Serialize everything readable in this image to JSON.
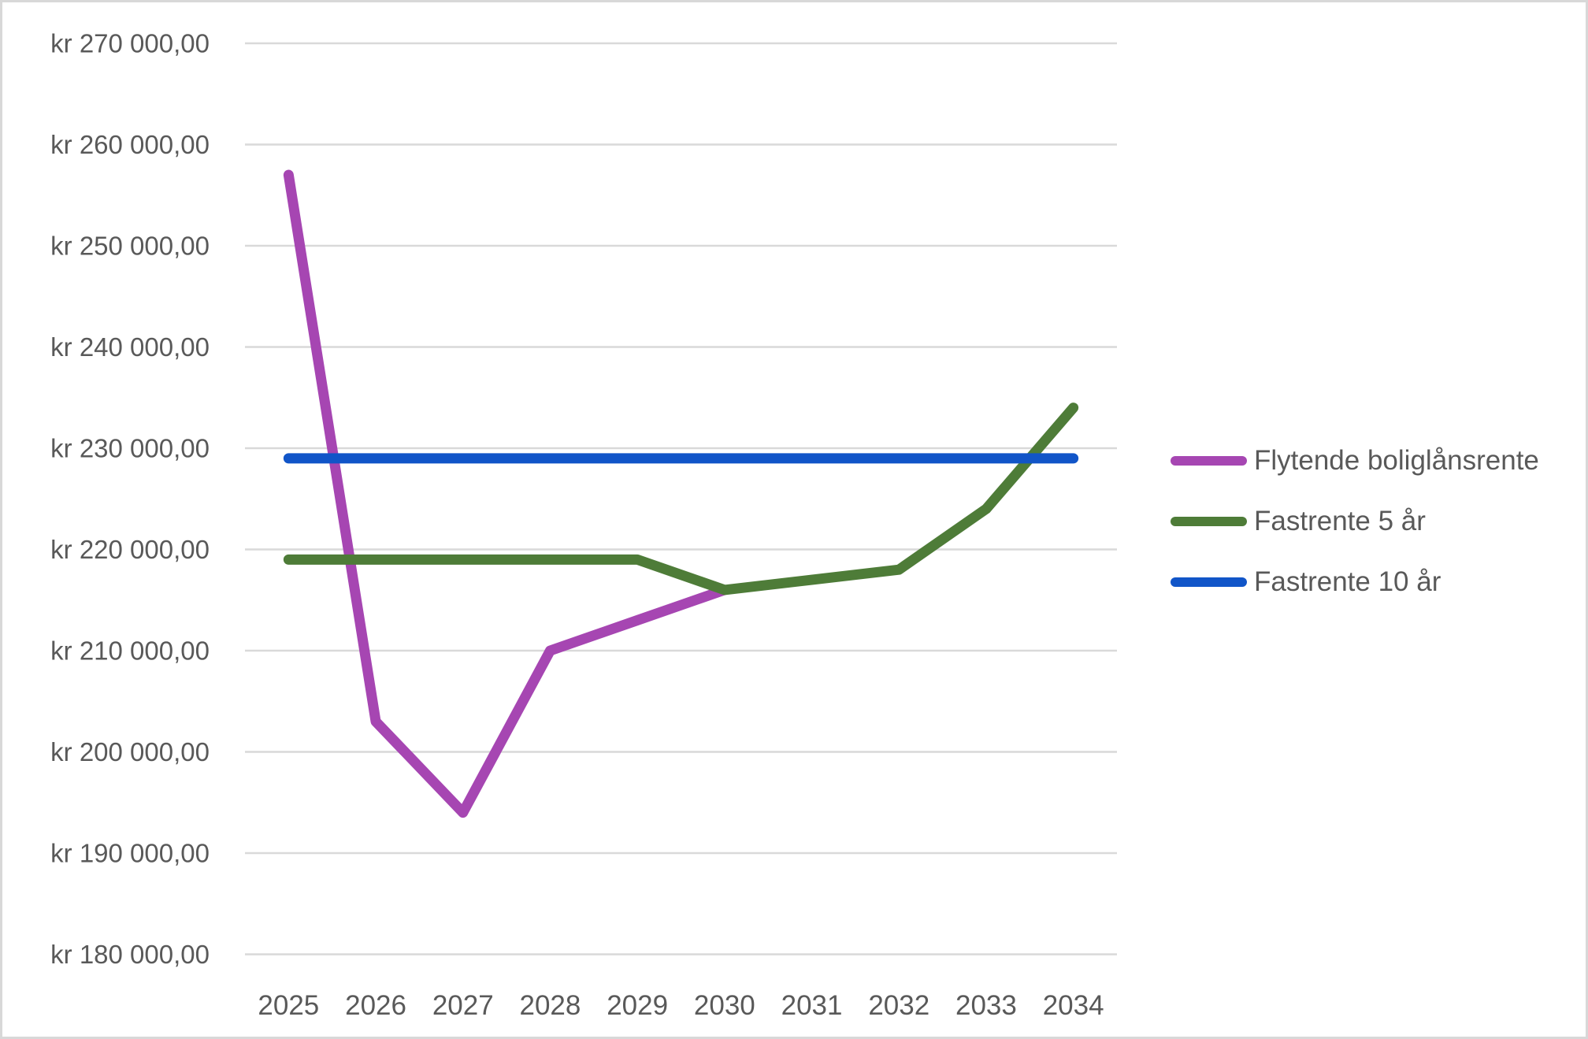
{
  "chart_data": {
    "type": "line",
    "title": "",
    "xlabel": "",
    "ylabel": "",
    "categories": [
      "2025",
      "2026",
      "2027",
      "2028",
      "2029",
      "2030",
      "2031",
      "2032",
      "2033",
      "2034"
    ],
    "series": [
      {
        "name": "Flytende boliglånsrente",
        "color": "#A646B2",
        "values": [
          257000,
          203000,
          194000,
          210000,
          213000,
          216000,
          null,
          null,
          null,
          null
        ]
      },
      {
        "name": "Fastrente 5 år",
        "color": "#4E7C38",
        "values": [
          219000,
          219000,
          219000,
          219000,
          219000,
          216000,
          217000,
          218000,
          224000,
          234000
        ]
      },
      {
        "name": "Fastrente 10 år",
        "color": "#1155C8",
        "values": [
          229000,
          229000,
          229000,
          229000,
          229000,
          229000,
          229000,
          229000,
          229000,
          229000
        ]
      }
    ],
    "ylim": [
      180000,
      270000
    ],
    "y_tick_step": 10000,
    "y_tick_labels": [
      "kr 270 000,00",
      "kr 260 000,00",
      "kr 250 000,00",
      "kr 240 000,00",
      "kr 230 000,00",
      "kr 220 000,00",
      "kr 210 000,00",
      "kr 200 000,00",
      "kr 190 000,00",
      "kr 180 000,00"
    ],
    "grid": true,
    "legend_position": "right",
    "legend_entries": [
      "Flytende boliglånsrente",
      "Fastrente 5 år",
      "Fastrente 10 år"
    ],
    "colors": {
      "text": "#595959",
      "gridline": "#D9D9D9",
      "background": "#FFFFFF",
      "frame_border": "#D8D8D8"
    }
  }
}
